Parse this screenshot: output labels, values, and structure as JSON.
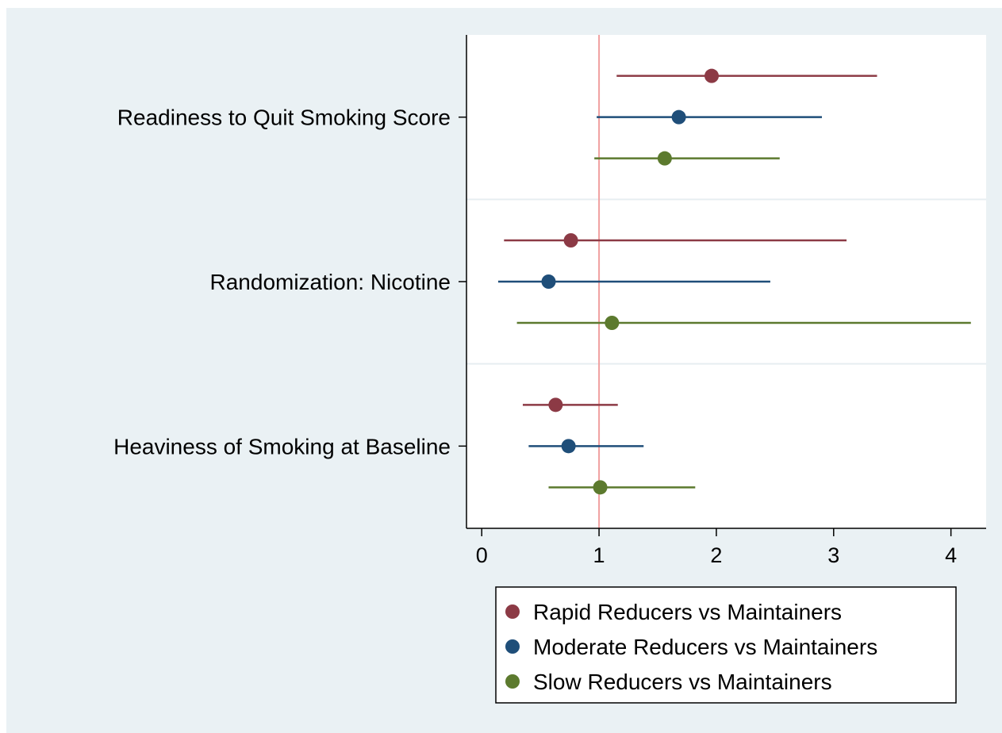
{
  "chart_data": {
    "type": "scatter",
    "subtype": "forest-plot",
    "categories": [
      "Readiness to Quit Smoking Score",
      "Randomization: Nicotine",
      "Heaviness of Smoking at Baseline"
    ],
    "x_ticks": [
      "0",
      "1",
      "2",
      "3",
      "4"
    ],
    "xlim": [
      -0.13,
      4.3
    ],
    "reference_line": 1,
    "grid": "horizontal separators between categories",
    "legend_position": "bottom",
    "series": [
      {
        "name": "Rapid Reducers vs Maintainers",
        "color": "#8c3a45",
        "estimates": [
          1.96,
          0.76,
          0.63
        ],
        "lower": [
          1.15,
          0.19,
          0.35
        ],
        "upper": [
          3.37,
          3.11,
          1.16
        ]
      },
      {
        "name": "Moderate Reducers vs Maintainers",
        "color": "#1f4e79",
        "estimates": [
          1.68,
          0.57,
          0.74
        ],
        "lower": [
          0.98,
          0.14,
          0.4
        ],
        "upper": [
          2.9,
          2.46,
          1.38
        ]
      },
      {
        "name": "Slow Reducers vs Maintainers",
        "color": "#5c7a2e",
        "estimates": [
          1.56,
          1.11,
          1.01
        ],
        "lower": [
          0.96,
          0.3,
          0.57
        ],
        "upper": [
          2.54,
          4.17,
          1.82
        ]
      }
    ]
  }
}
